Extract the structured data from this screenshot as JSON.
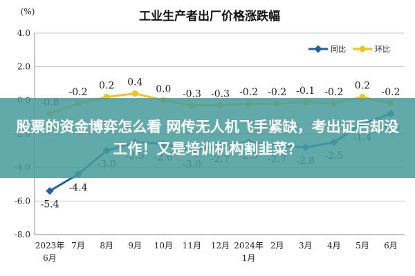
{
  "chart_data": {
    "type": "line",
    "title": "工业生产者出厂价格涨跌幅",
    "unit": "(%)",
    "categories": [
      "2023年\n6月",
      "7月",
      "8月",
      "9月",
      "10月",
      "11月",
      "12月",
      "2024年\n1月",
      "2月",
      "3月",
      "4月",
      "5月",
      "6月"
    ],
    "series": [
      {
        "name": "同比",
        "color": "#1e5fa8",
        "values": [
          -5.4,
          -4.4,
          -3.0,
          -2.5,
          -2.6,
          -3.0,
          -2.7,
          -2.5,
          -2.7,
          -2.8,
          -2.5,
          -1.4,
          -0.8
        ]
      },
      {
        "name": "环比",
        "color": "#f2c318",
        "values": [
          -0.8,
          -0.2,
          0.2,
          0.4,
          0.0,
          -0.3,
          -0.3,
          -0.2,
          -0.2,
          -0.1,
          -0.2,
          0.2,
          -0.2
        ]
      }
    ],
    "ylim": [
      -8.0,
      4.0
    ],
    "yticks": [
      4.0,
      2.0,
      0.0,
      -2.0,
      -4.0,
      -6.0,
      -8.0
    ],
    "grid": true,
    "legend": "top-right"
  },
  "overlay": {
    "text": "股票的资金博弈怎么看 网传无人机飞手紧缺，考出证后却没工作！又是培训机构割韭菜？"
  }
}
